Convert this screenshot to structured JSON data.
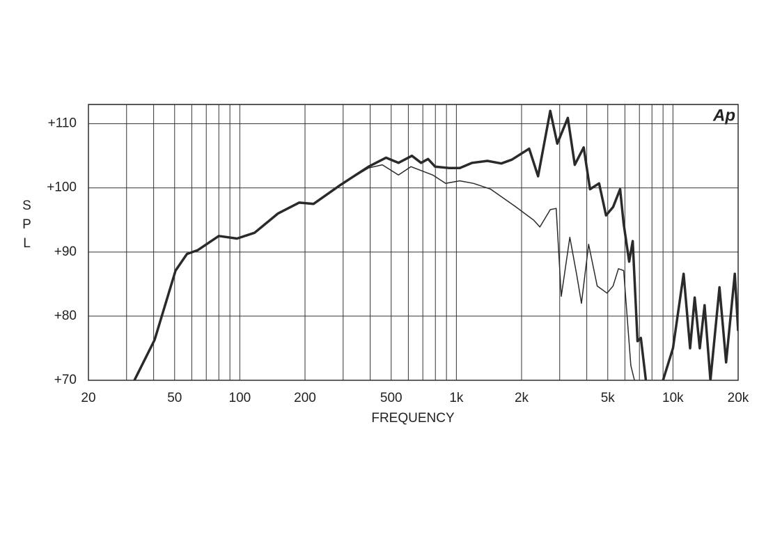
{
  "chart_data": {
    "type": "line",
    "xlabel": "FREQUENCY",
    "ylabel": "SPL",
    "annotation": "Ap",
    "xscale": "log",
    "xlim": [
      20,
      20000
    ],
    "ylim": [
      70,
      113
    ],
    "xticks": [
      20,
      50,
      100,
      200,
      500,
      {
        "value": 1000,
        "label": "1k"
      },
      {
        "value": 2000,
        "label": "2k"
      },
      {
        "value": 5000,
        "label": "5k"
      },
      {
        "value": 10000,
        "label": "10k"
      },
      {
        "value": 20000,
        "label": "20k"
      }
    ],
    "xminor": [
      30,
      40,
      60,
      70,
      80,
      90,
      300,
      400,
      600,
      700,
      800,
      900,
      3000,
      4000,
      6000,
      7000,
      8000,
      9000
    ],
    "yticks": [
      {
        "value": 70,
        "label": "+70"
      },
      {
        "value": 80,
        "label": "+80"
      },
      {
        "value": 90,
        "label": "+90"
      },
      {
        "value": 100,
        "label": "+100"
      },
      {
        "value": 110,
        "label": "+110"
      }
    ],
    "grid": true,
    "series": [
      {
        "color": "#2a2a2a",
        "width": 3.5,
        "x": [
          32.6,
          40.4,
          50.5,
          57,
          64,
          80,
          97,
          117,
          150,
          188,
          219,
          293,
          393,
          473,
          540,
          623,
          687,
          740,
          798,
          926,
          1037,
          1183,
          1390,
          1612,
          1805,
          2168,
          2384,
          2713,
          2924,
          3270,
          3520,
          3870,
          4140,
          4560,
          4910,
          5290,
          5700,
          5920,
          6280,
          6520,
          6860,
          7110,
          7500,
          8500,
          9000,
          10000,
          11200,
          12000,
          12600,
          13300,
          14000,
          14900,
          16400,
          17600,
          19300,
          20000
        ],
        "values": [
          70,
          76.3,
          87.1,
          89.7,
          90.3,
          92.5,
          92.1,
          93.0,
          96.0,
          97.7,
          97.5,
          100.5,
          103.3,
          104.7,
          103.9,
          105.0,
          103.9,
          104.5,
          103.3,
          103.1,
          103.1,
          103.9,
          104.2,
          103.8,
          104.4,
          106.1,
          101.8,
          112.0,
          106.9,
          110.9,
          103.6,
          106.3,
          99.8,
          100.7,
          95.7,
          97.0,
          99.8,
          94.4,
          88.5,
          91.7,
          76.1,
          76.6,
          70,
          null,
          70,
          75,
          86.6,
          75,
          82.9,
          75,
          81.7,
          70,
          84.5,
          72.8,
          86.6,
          77.7
        ]
      },
      {
        "color": "#2a2a2a",
        "width": 1.5,
        "x": [
          32.6,
          40.4,
          50.5,
          57,
          64,
          80,
          97,
          117,
          150,
          188,
          219,
          293,
          393,
          455,
          540,
          617,
          778,
          892,
          1037,
          1200,
          1440,
          1870,
          2270,
          2430,
          2713,
          2890,
          3050,
          3340,
          3600,
          3780,
          4080,
          4470,
          4960,
          5290,
          5600,
          5920,
          6390,
          6640
        ],
        "values": [
          70,
          76.3,
          87.1,
          89.7,
          90.3,
          92.5,
          92.1,
          93.0,
          96.0,
          97.7,
          97.5,
          100.5,
          103.1,
          103.6,
          102,
          103.3,
          102,
          100.7,
          101.1,
          100.7,
          99.8,
          97.1,
          95.0,
          93.9,
          96.6,
          96.8,
          83.1,
          92.3,
          86.3,
          82.0,
          91.2,
          84.7,
          83.6,
          84.7,
          87.4,
          87.1,
          72.3,
          70
        ]
      }
    ]
  }
}
